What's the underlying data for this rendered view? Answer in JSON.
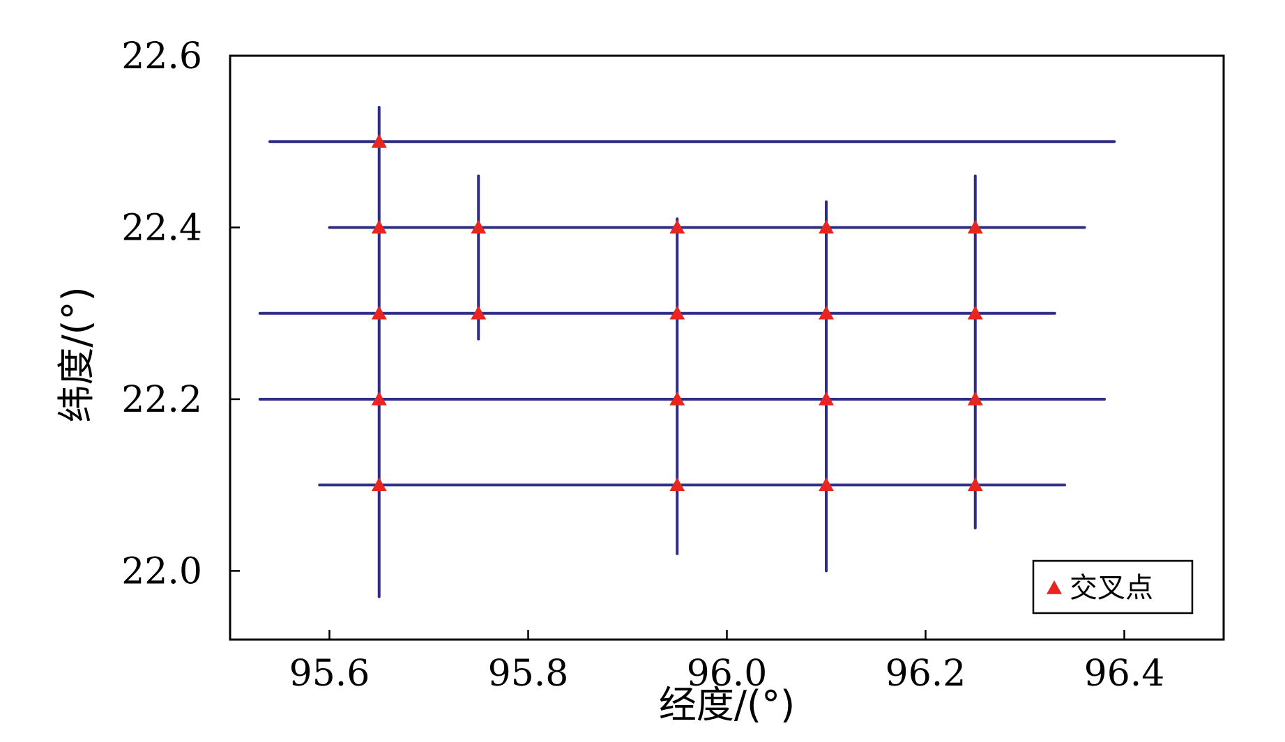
{
  "chart_data": {
    "type": "line",
    "xlabel": "经度/(°)",
    "ylabel": "纬度/(°)",
    "xlim": [
      95.5,
      96.5
    ],
    "ylim": [
      21.92,
      22.6
    ],
    "xticks": [
      95.6,
      95.8,
      96.0,
      96.2,
      96.4
    ],
    "yticks": [
      22.0,
      22.2,
      22.4,
      22.6
    ],
    "xtick_labels": [
      "95.6",
      "95.8",
      "96.0",
      "96.2",
      "96.4"
    ],
    "ytick_labels": [
      "22.0",
      "22.2",
      "22.4",
      "22.6"
    ],
    "grid": false,
    "line_color": "#2e2c85",
    "marker_color": "#e8251f",
    "horizontal_tracks": [
      {
        "lat": 22.5,
        "lon_range": [
          95.54,
          96.39
        ]
      },
      {
        "lat": 22.4,
        "lon_range": [
          95.6,
          96.36
        ]
      },
      {
        "lat": 22.3,
        "lon_range": [
          95.53,
          96.33
        ]
      },
      {
        "lat": 22.2,
        "lon_range": [
          95.53,
          96.38
        ]
      },
      {
        "lat": 22.1,
        "lon_range": [
          95.59,
          96.34
        ]
      }
    ],
    "vertical_tracks": [
      {
        "lon": 95.65,
        "lat_range": [
          21.97,
          22.54
        ]
      },
      {
        "lon": 95.75,
        "lat_range": [
          22.27,
          22.46
        ]
      },
      {
        "lon": 95.95,
        "lat_range": [
          22.02,
          22.41
        ]
      },
      {
        "lon": 96.1,
        "lat_range": [
          22.0,
          22.43
        ]
      },
      {
        "lon": 96.25,
        "lat_range": [
          22.05,
          22.46
        ]
      }
    ],
    "series": [
      {
        "name": "交叉点",
        "marker": "triangle",
        "points": [
          [
            95.65,
            22.5
          ],
          [
            95.65,
            22.4
          ],
          [
            95.75,
            22.4
          ],
          [
            95.95,
            22.4
          ],
          [
            96.1,
            22.4
          ],
          [
            96.25,
            22.4
          ],
          [
            95.65,
            22.3
          ],
          [
            95.75,
            22.3
          ],
          [
            95.95,
            22.3
          ],
          [
            96.1,
            22.3
          ],
          [
            96.25,
            22.3
          ],
          [
            95.65,
            22.2
          ],
          [
            95.95,
            22.2
          ],
          [
            96.1,
            22.2
          ],
          [
            96.25,
            22.2
          ],
          [
            95.65,
            22.1
          ],
          [
            95.95,
            22.1
          ],
          [
            96.1,
            22.1
          ],
          [
            96.25,
            22.1
          ]
        ]
      }
    ],
    "legend": {
      "position": "bottom-right",
      "label": "交叉点"
    }
  }
}
